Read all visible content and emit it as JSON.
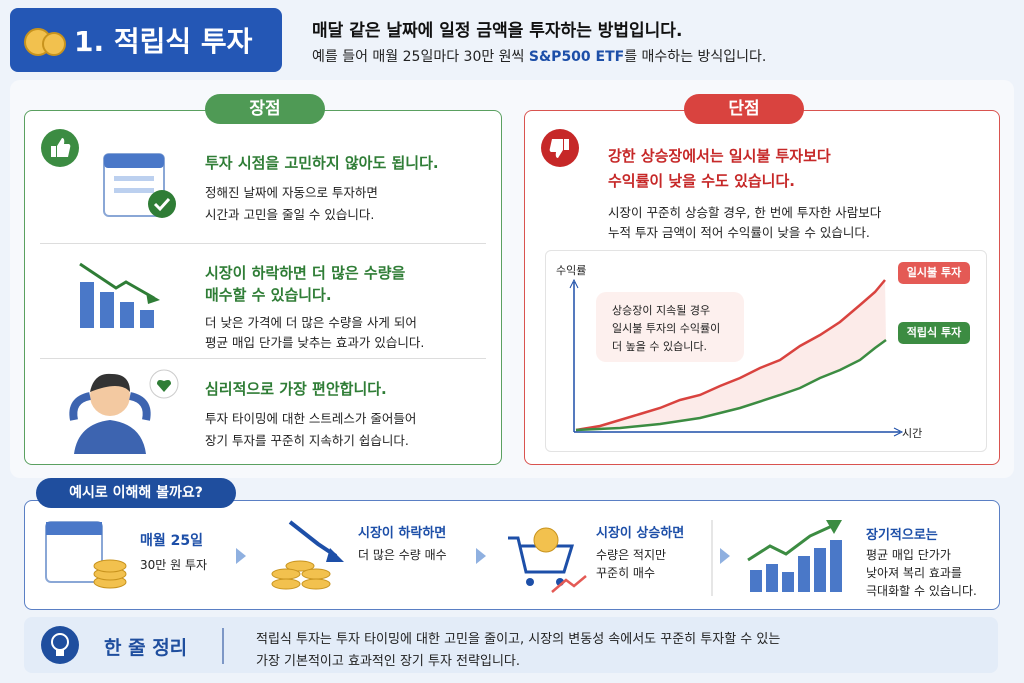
{
  "header": {
    "title": "1. 적립식 투자",
    "headline": "매달 같은 날짜에 일정 금액을 투자하는 방법입니다.",
    "desc_prefix": "예를 들어 매월 25일마다 30만 원씩 ",
    "desc_highlight": "S&P500 ETF",
    "desc_suffix": "를 매수하는 방식입니다."
  },
  "pros": {
    "label": "장점",
    "items": [
      {
        "title": [
          "투자 시점을 고민하지 않아도 됩니다."
        ],
        "body": [
          "정해진 날짜에 자동으로 투자하면",
          "시간과 고민을 줄일 수 있습니다."
        ]
      },
      {
        "title": [
          "시장이 하락하면 더 많은 수량을",
          "매수할 수 있습니다."
        ],
        "body": [
          "더 낮은 가격에 더 많은 수량을 사게 되어",
          "평균 매입 단가를 낮추는 효과가 있습니다."
        ]
      },
      {
        "title": [
          "심리적으로 가장 편안합니다."
        ],
        "body": [
          "투자 타이밍에 대한 스트레스가 줄어들어",
          "장기 투자를 꾸준히 지속하기 쉽습니다."
        ]
      }
    ]
  },
  "cons": {
    "label": "단점",
    "title": [
      "강한 상승장에서는 일시불 투자보다",
      "수익률이 낮을 수도 있습니다."
    ],
    "body": [
      "시장이 꾸준히 상승할 경우, 한 번에 투자한 사람보다",
      "누적 투자 금액이 적어 수익률이 낮을 수 있습니다."
    ],
    "chart": {
      "y_label": "수익률",
      "x_label": "시간",
      "callout": [
        "상승장이 지속될 경우",
        "일시불 투자의 수익률이",
        "더 높을 수 있습니다."
      ],
      "series": [
        "일시불 투자",
        "적립식 투자"
      ]
    }
  },
  "example": {
    "label": "예시로 이해해 볼까요?",
    "steps": [
      {
        "title": "매월 25일",
        "body": [
          "30만 원 투자"
        ]
      },
      {
        "title": "시장이 하락하면",
        "body": [
          "더 많은 수량 매수"
        ]
      },
      {
        "title": "시장이 상승하면",
        "body": [
          "수량은 적지만",
          "꾸준히 매수"
        ]
      },
      {
        "title": "장기적으로는",
        "body": [
          "평균 매입 단가가",
          "낮아져 복리 효과를",
          "극대화할 수 있습니다."
        ]
      }
    ]
  },
  "summary": {
    "label": "한 줄 정리",
    "lines": [
      "적립식 투자는 투자 타이밍에 대한 고민을 줄이고, 시장의 변동성 속에서도 꾸준히 투자할 수 있는",
      "가장 기본적이고 효과적인 장기 투자 전략입니다."
    ]
  }
}
